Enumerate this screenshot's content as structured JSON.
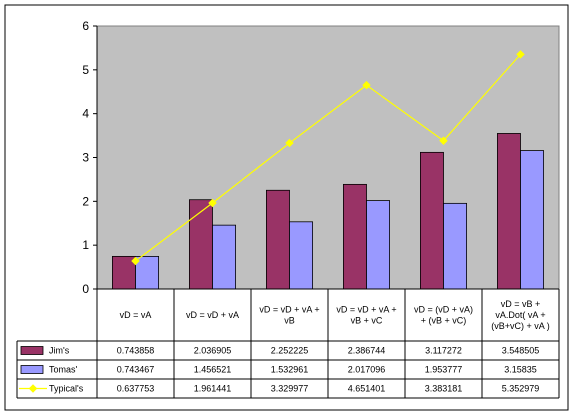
{
  "chart_data": {
    "type": "bar",
    "title": "",
    "xlabel": "",
    "ylabel": "",
    "ylim": [
      0,
      6
    ],
    "yticks": [
      "0",
      "1",
      "2",
      "3",
      "4",
      "5",
      "6"
    ],
    "grid": false,
    "legend": "data-table",
    "categories": [
      "vD = vA",
      "vD = vD + vA",
      "vD = vD + vA + vB",
      "vD = vD + vA + vB + vC",
      "vD = (vD + vA) + (vB + vC)",
      "vD = vB + vA.Dot( vA + (vB+vC) + vA )"
    ],
    "category_lines": [
      [
        "vD = vA"
      ],
      [
        "vD = vD + vA"
      ],
      [
        "vD = vD + vA +",
        "vB"
      ],
      [
        "vD = vD + vA +",
        "vB + vC"
      ],
      [
        "vD = (vD + vA)",
        "+ (vB + vC)"
      ],
      [
        "vD = vB +",
        "vA.Dot( vA +",
        "(vB+vC) + vA )"
      ]
    ],
    "series": [
      {
        "name": "Jim's",
        "type": "bar",
        "color": "#993366",
        "values": [
          0.743858,
          2.036905,
          2.252225,
          2.386744,
          3.117272,
          3.548505
        ],
        "labels": [
          "0.743858",
          "2.036905",
          "2.252225",
          "2.386744",
          "3.117272",
          "3.548505"
        ]
      },
      {
        "name": "Tomas'",
        "type": "bar",
        "color": "#9999ff",
        "values": [
          0.743467,
          1.456521,
          1.532961,
          2.017096,
          1.953777,
          3.15835
        ],
        "labels": [
          "0.743467",
          "1.456521",
          "1.532961",
          "2.017096",
          "1.953777",
          "3.15835"
        ]
      },
      {
        "name": "Typical's",
        "type": "line",
        "color": "#ffff00",
        "values": [
          0.637753,
          1.961441,
          3.329977,
          4.651401,
          3.383181,
          5.352979
        ],
        "labels": [
          "0.637753",
          "1.961441",
          "3.329977",
          "4.651401",
          "3.383181",
          "5.352979"
        ]
      }
    ],
    "plot_background": "#c0c0c0"
  }
}
